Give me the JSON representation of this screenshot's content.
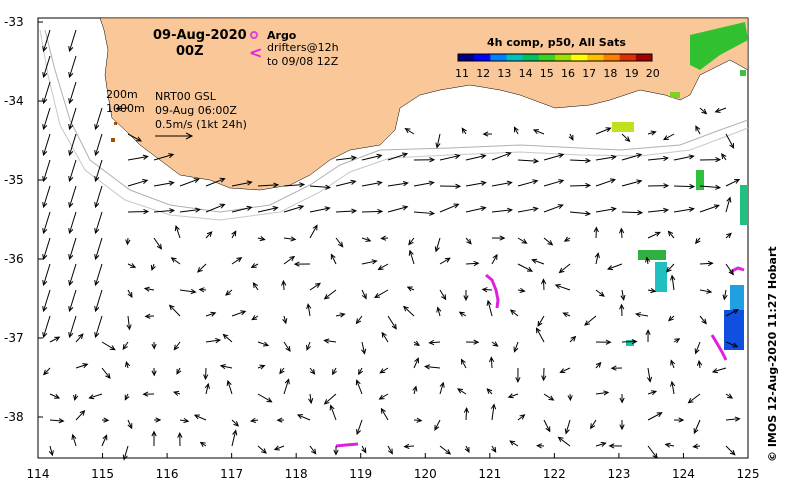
{
  "header": {
    "date": "09-Aug-2020",
    "time": "00Z"
  },
  "legend": {
    "argo_label": "Argo",
    "drifters_label": "drifters@12h",
    "drifters_sub": "to 09/08 12Z",
    "argo_color": "#e040e0",
    "drifter_color": "#e020e0"
  },
  "depth_labels": [
    "200m",
    "1000m"
  ],
  "current_info": {
    "line1": "NRT00 GSL",
    "line2": "09-Aug 06:00Z",
    "line3": "0.5m/s (1kt 24h)"
  },
  "colorbar": {
    "title": "4h comp, p50, All Sats",
    "ticks": [
      "11",
      "12",
      "13",
      "14",
      "15",
      "16",
      "17",
      "18",
      "19",
      "20"
    ],
    "colors": [
      "#000080",
      "#0000ff",
      "#0080ff",
      "#00c0c0",
      "#00c060",
      "#40d020",
      "#a0e000",
      "#ffff00",
      "#ffc000",
      "#ff8000",
      "#e03000",
      "#a00000"
    ]
  },
  "axes": {
    "x_ticks": [
      "114",
      "115",
      "116",
      "117",
      "118",
      "119",
      "120",
      "121",
      "122",
      "123",
      "124",
      "125"
    ],
    "y_ticks": [
      "-33",
      "-34",
      "-35",
      "-36",
      "-37",
      "-38"
    ]
  },
  "land_color": "#fac898",
  "copyright": "© IMOS 12-Aug-2020 11:27 Hobart"
}
